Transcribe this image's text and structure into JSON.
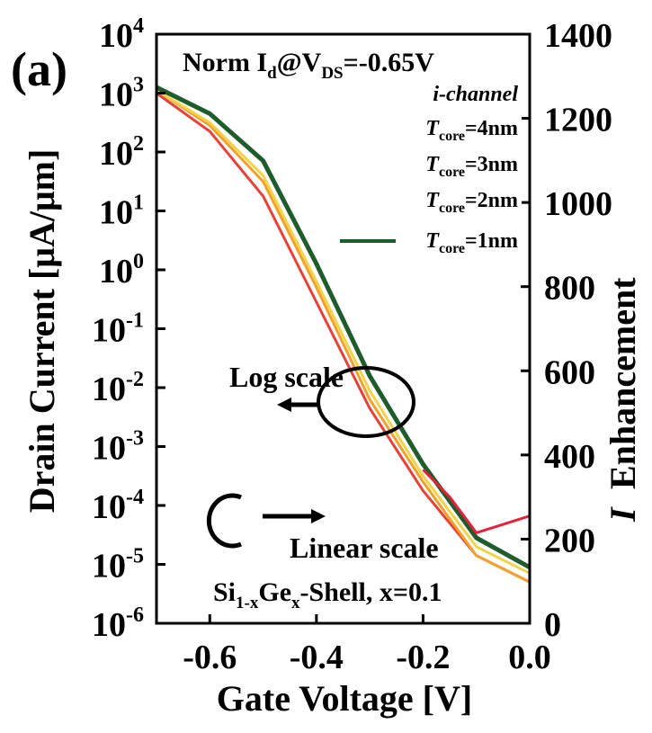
{
  "panel_label": "(a)",
  "chart_data": {
    "type": "line",
    "xlabel": "Gate Voltage [V]",
    "ylabel_left": "Drain Current [μA/μm]",
    "ylabel_right_partial": "I",
    "ylabel_right_partial_rest": "Enhancement",
    "xlim": [
      -0.7,
      0.0
    ],
    "xticks": [
      -0.6,
      -0.4,
      -0.2,
      0.0
    ],
    "xtick_labels": [
      "-0.6",
      "-0.4",
      "-0.2",
      "0.0"
    ],
    "ylim_left_log": [
      -6,
      4
    ],
    "ytick_left_exponents": [
      4,
      3,
      2,
      1,
      0,
      -1,
      -2,
      -3,
      -4,
      -5,
      -6
    ],
    "ytick_left_base": "10",
    "ylim_right": [
      0,
      1400
    ],
    "yticks_right": [
      0,
      200,
      400,
      600,
      800,
      1000,
      1200,
      1400
    ],
    "annotation_title": {
      "prefix": "Norm I",
      "sub1": "d",
      "mid": "@V",
      "sub2": "DS",
      "suffix": "=-0.65V"
    },
    "legend_header": "i-channel",
    "legend_sub": "core",
    "series": [
      {
        "name_prefix": "T",
        "name_suffix": "=4nm",
        "color": "#e8413a",
        "width": 3,
        "x": [
          -0.7,
          -0.6,
          -0.5,
          -0.4,
          -0.3,
          -0.2,
          -0.1,
          0.0
        ],
        "y_log": [
          3.0,
          2.35,
          1.25,
          -0.55,
          -2.35,
          -3.75,
          -4.85,
          -5.3
        ]
      },
      {
        "name_prefix": "T",
        "name_suffix": "=3nm",
        "color": "#f0a22c",
        "width": 3,
        "x": [
          -0.7,
          -0.6,
          -0.5,
          -0.4,
          -0.3,
          -0.2,
          -0.1,
          0.0
        ],
        "y_log": [
          3.05,
          2.45,
          1.5,
          -0.3,
          -2.2,
          -3.6,
          -4.85,
          -5.3
        ]
      },
      {
        "name_prefix": "T",
        "name_suffix": "=2nm",
        "color": "#f2d34b",
        "width": 3,
        "x": [
          -0.7,
          -0.6,
          -0.5,
          -0.4,
          -0.3,
          -0.2,
          -0.1,
          0.0
        ],
        "y_log": [
          3.05,
          2.5,
          1.6,
          -0.2,
          -2.05,
          -3.5,
          -4.7,
          -5.15
        ]
      },
      {
        "name_prefix": "T",
        "name_suffix": "=1nm",
        "color": "#1f5c2b",
        "width": 5,
        "x": [
          -0.7,
          -0.6,
          -0.5,
          -0.4,
          -0.3,
          -0.2,
          -0.1,
          0.0
        ],
        "y_log": [
          3.1,
          2.65,
          1.85,
          0.1,
          -1.8,
          -3.3,
          -4.55,
          -5.05
        ]
      }
    ],
    "enhancement_series": {
      "color": "#e8213a",
      "x": [
        -0.2,
        -0.15,
        -0.1,
        -0.05,
        0.0
      ],
      "y": [
        365,
        300,
        215,
        235,
        255
      ]
    },
    "annotations": {
      "log_scale": "Log scale",
      "linear_scale": "Linear scale",
      "shell_prefix": "Si",
      "shell_sub": "1-x",
      "shell_mid": "Ge",
      "shell_sub2": "x",
      "shell_suffix": "-Shell, x=0.1"
    }
  }
}
